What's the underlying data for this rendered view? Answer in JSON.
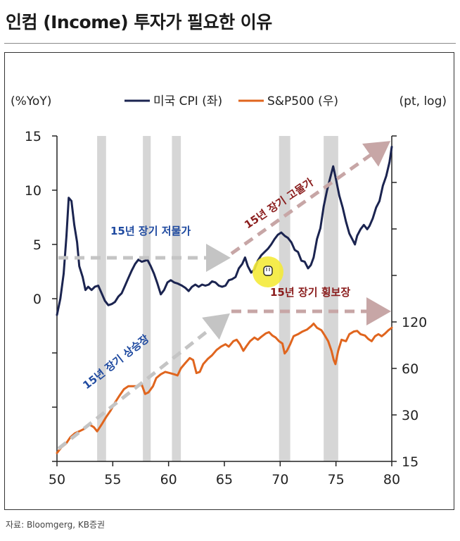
{
  "page": {
    "title": "인컴 (Income) 투자가 필요한 이유",
    "source": "자료: Bloomgerg, KB증권"
  },
  "chart_data": {
    "type": "line",
    "left_unit": "(%YoY)",
    "right_unit": "(pt, log)",
    "legend_position": "top",
    "x_ticks": [
      "50",
      "55",
      "60",
      "65",
      "70",
      "75",
      "80"
    ],
    "xlim": [
      1950,
      1980
    ],
    "left_ticks": [
      "15",
      "10",
      "5",
      "0"
    ],
    "left_tick_values": [
      15,
      10,
      5,
      0
    ],
    "ylim_left": [
      -15,
      15
    ],
    "right_ticks": [
      "120",
      "60",
      "30",
      "15"
    ],
    "right_tick_values": [
      120,
      60,
      30,
      15
    ],
    "ylim_right": [
      15,
      1920
    ],
    "right_scale": "log",
    "grid": false,
    "recession_bands": [
      [
        1953.6,
        1954.4
      ],
      [
        1957.7,
        1958.4
      ],
      [
        1960.3,
        1961.1
      ],
      [
        1969.9,
        1970.9
      ],
      [
        1973.9,
        1975.2
      ]
    ],
    "series": [
      {
        "name": "미국 CPI (좌)",
        "color": "#1b2450",
        "axis": "left",
        "points": [
          [
            1950.0,
            -1.5
          ],
          [
            1950.3,
            0.0
          ],
          [
            1950.6,
            2.3
          ],
          [
            1950.85,
            5.8
          ],
          [
            1951.05,
            9.3
          ],
          [
            1951.3,
            9.0
          ],
          [
            1951.55,
            6.8
          ],
          [
            1951.8,
            5.2
          ],
          [
            1952.0,
            3.0
          ],
          [
            1952.3,
            2.0
          ],
          [
            1952.55,
            0.8
          ],
          [
            1952.8,
            1.1
          ],
          [
            1953.1,
            0.8
          ],
          [
            1953.4,
            1.1
          ],
          [
            1953.7,
            1.2
          ],
          [
            1954.0,
            0.5
          ],
          [
            1954.3,
            -0.2
          ],
          [
            1954.6,
            -0.6
          ],
          [
            1954.9,
            -0.5
          ],
          [
            1955.2,
            -0.3
          ],
          [
            1955.5,
            0.2
          ],
          [
            1955.8,
            0.5
          ],
          [
            1956.1,
            1.2
          ],
          [
            1956.4,
            1.9
          ],
          [
            1956.7,
            2.6
          ],
          [
            1957.0,
            3.2
          ],
          [
            1957.3,
            3.6
          ],
          [
            1957.6,
            3.4
          ],
          [
            1957.9,
            3.5
          ],
          [
            1958.1,
            3.6
          ],
          [
            1958.4,
            3.0
          ],
          [
            1958.7,
            2.3
          ],
          [
            1959.0,
            1.4
          ],
          [
            1959.3,
            0.4
          ],
          [
            1959.6,
            0.8
          ],
          [
            1959.9,
            1.5
          ],
          [
            1960.2,
            1.7
          ],
          [
            1960.5,
            1.5
          ],
          [
            1960.8,
            1.4
          ],
          [
            1961.2,
            1.2
          ],
          [
            1961.5,
            1.0
          ],
          [
            1961.8,
            0.7
          ],
          [
            1962.1,
            1.1
          ],
          [
            1962.4,
            1.3
          ],
          [
            1962.7,
            1.1
          ],
          [
            1963.0,
            1.3
          ],
          [
            1963.3,
            1.2
          ],
          [
            1963.6,
            1.3
          ],
          [
            1963.9,
            1.6
          ],
          [
            1964.2,
            1.5
          ],
          [
            1964.5,
            1.2
          ],
          [
            1964.8,
            1.1
          ],
          [
            1965.1,
            1.2
          ],
          [
            1965.4,
            1.7
          ],
          [
            1965.7,
            1.8
          ],
          [
            1966.0,
            2.0
          ],
          [
            1966.3,
            2.8
          ],
          [
            1966.6,
            3.2
          ],
          [
            1966.85,
            3.8
          ],
          [
            1967.1,
            3.0
          ],
          [
            1967.4,
            2.4
          ],
          [
            1967.7,
            2.7
          ],
          [
            1968.0,
            3.5
          ],
          [
            1968.3,
            4.0
          ],
          [
            1968.6,
            4.3
          ],
          [
            1968.9,
            4.6
          ],
          [
            1969.2,
            5.0
          ],
          [
            1969.5,
            5.5
          ],
          [
            1969.8,
            5.9
          ],
          [
            1970.1,
            6.1
          ],
          [
            1970.4,
            5.8
          ],
          [
            1970.7,
            5.6
          ],
          [
            1971.0,
            5.2
          ],
          [
            1971.3,
            4.5
          ],
          [
            1971.6,
            4.3
          ],
          [
            1971.9,
            3.5
          ],
          [
            1972.2,
            3.4
          ],
          [
            1972.5,
            2.8
          ],
          [
            1972.75,
            3.1
          ],
          [
            1973.0,
            3.8
          ],
          [
            1973.3,
            5.5
          ],
          [
            1973.6,
            6.5
          ],
          [
            1973.9,
            8.5
          ],
          [
            1974.2,
            10.0
          ],
          [
            1974.5,
            11.2
          ],
          [
            1974.75,
            12.2
          ],
          [
            1975.0,
            11.0
          ],
          [
            1975.3,
            9.5
          ],
          [
            1975.6,
            8.4
          ],
          [
            1975.9,
            7.1
          ],
          [
            1976.2,
            6.0
          ],
          [
            1976.5,
            5.4
          ],
          [
            1976.7,
            5.0
          ],
          [
            1976.9,
            5.8
          ],
          [
            1977.2,
            6.4
          ],
          [
            1977.5,
            6.8
          ],
          [
            1977.8,
            6.4
          ],
          [
            1978.0,
            6.7
          ],
          [
            1978.3,
            7.4
          ],
          [
            1978.6,
            8.4
          ],
          [
            1978.9,
            9.0
          ],
          [
            1979.2,
            10.4
          ],
          [
            1979.5,
            11.3
          ],
          [
            1979.8,
            12.6
          ],
          [
            1980.0,
            14.0
          ]
        ]
      },
      {
        "name": "S&P500 (우)",
        "color": "#e0651e",
        "axis": "right",
        "points": [
          [
            1950.0,
            17
          ],
          [
            1950.4,
            18.5
          ],
          [
            1950.8,
            19.5
          ],
          [
            1951.2,
            21.5
          ],
          [
            1951.6,
            22.8
          ],
          [
            1952.0,
            23.5
          ],
          [
            1952.5,
            24.5
          ],
          [
            1952.9,
            26
          ],
          [
            1953.3,
            25
          ],
          [
            1953.6,
            23.5
          ],
          [
            1954.0,
            26
          ],
          [
            1954.4,
            29
          ],
          [
            1954.8,
            32
          ],
          [
            1955.2,
            36
          ],
          [
            1955.6,
            40
          ],
          [
            1956.0,
            44
          ],
          [
            1956.4,
            46
          ],
          [
            1956.8,
            46
          ],
          [
            1957.2,
            46
          ],
          [
            1957.6,
            47
          ],
          [
            1957.9,
            41
          ],
          [
            1958.2,
            42
          ],
          [
            1958.6,
            46
          ],
          [
            1958.9,
            52
          ],
          [
            1959.3,
            55
          ],
          [
            1959.7,
            57
          ],
          [
            1960.1,
            56
          ],
          [
            1960.5,
            55
          ],
          [
            1960.8,
            54
          ],
          [
            1961.1,
            60
          ],
          [
            1961.5,
            65
          ],
          [
            1961.9,
            70
          ],
          [
            1962.2,
            68
          ],
          [
            1962.5,
            56
          ],
          [
            1962.8,
            57
          ],
          [
            1963.1,
            64
          ],
          [
            1963.5,
            69
          ],
          [
            1963.9,
            73
          ],
          [
            1964.3,
            79
          ],
          [
            1964.7,
            83
          ],
          [
            1965.1,
            86
          ],
          [
            1965.4,
            83
          ],
          [
            1965.8,
            90
          ],
          [
            1966.1,
            92
          ],
          [
            1966.4,
            86
          ],
          [
            1966.7,
            78
          ],
          [
            1967.0,
            84
          ],
          [
            1967.3,
            90
          ],
          [
            1967.7,
            95
          ],
          [
            1968.0,
            92
          ],
          [
            1968.3,
            96
          ],
          [
            1968.7,
            101
          ],
          [
            1969.0,
            103
          ],
          [
            1969.3,
            98
          ],
          [
            1969.6,
            95
          ],
          [
            1969.9,
            90
          ],
          [
            1970.2,
            87
          ],
          [
            1970.4,
            75
          ],
          [
            1970.6,
            78
          ],
          [
            1970.9,
            86
          ],
          [
            1971.2,
            97
          ],
          [
            1971.6,
            100
          ],
          [
            1972.0,
            104
          ],
          [
            1972.4,
            107
          ],
          [
            1972.8,
            113
          ],
          [
            1973.0,
            117
          ],
          [
            1973.3,
            110
          ],
          [
            1973.7,
            106
          ],
          [
            1974.0,
            98
          ],
          [
            1974.3,
            90
          ],
          [
            1974.6,
            78
          ],
          [
            1974.8,
            68
          ],
          [
            1974.95,
            64
          ],
          [
            1975.2,
            78
          ],
          [
            1975.5,
            92
          ],
          [
            1975.9,
            90
          ],
          [
            1976.2,
            100
          ],
          [
            1976.6,
            104
          ],
          [
            1976.9,
            105
          ],
          [
            1977.2,
            100
          ],
          [
            1977.6,
            98
          ],
          [
            1977.9,
            93
          ],
          [
            1978.2,
            90
          ],
          [
            1978.5,
            97
          ],
          [
            1978.8,
            100
          ],
          [
            1979.1,
            97
          ],
          [
            1979.4,
            101
          ],
          [
            1979.7,
            106
          ],
          [
            1980.0,
            110
          ]
        ]
      }
    ],
    "annotations": [
      {
        "text": "15년 장기 저물가",
        "color": "#1f4aa0"
      },
      {
        "text": "15년 장기 고물가",
        "color": "#8a1c1c"
      },
      {
        "text": "15년 장기 상승장",
        "color": "#1f4aa0"
      },
      {
        "text": "15년 장기 횡보장",
        "color": "#8a1c1c"
      }
    ]
  }
}
